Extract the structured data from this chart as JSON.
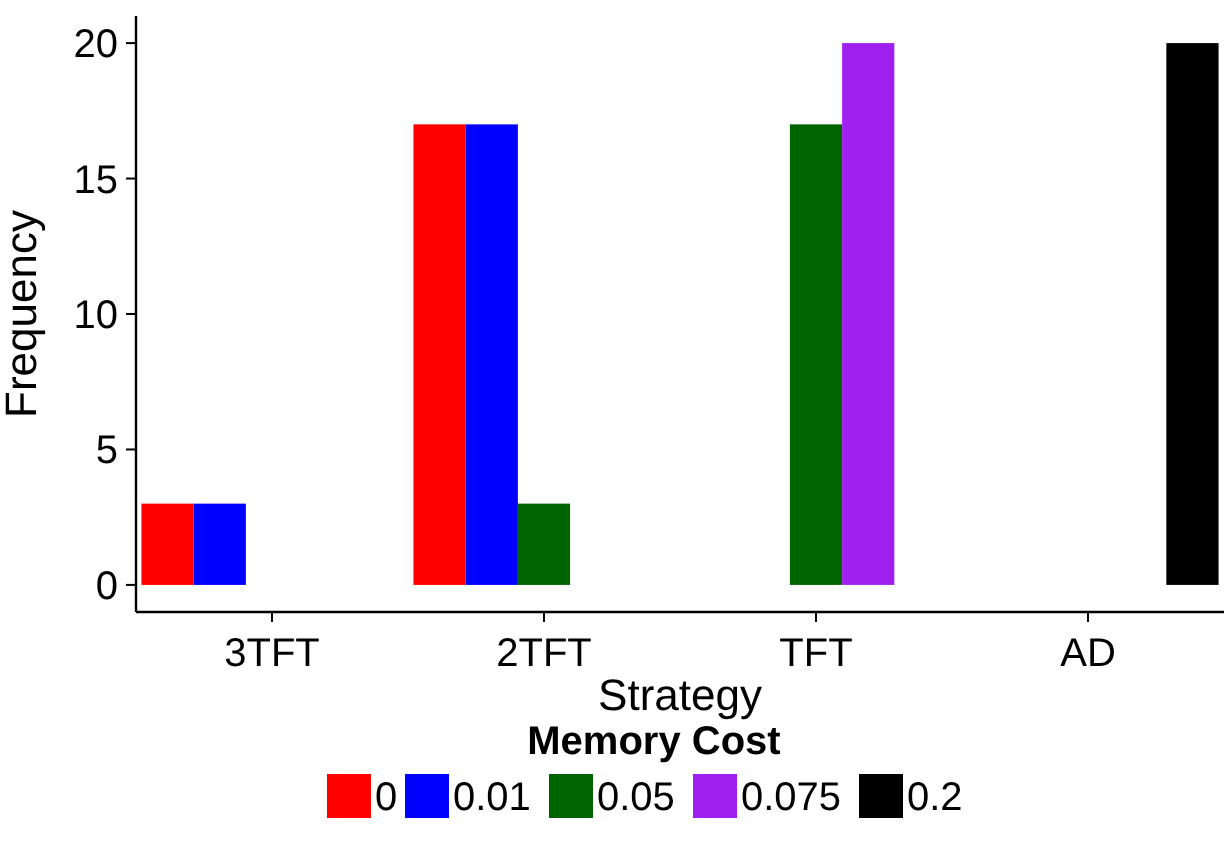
{
  "chart_data": {
    "type": "bar",
    "xlabel": "Strategy",
    "ylabel": "Frequency",
    "legend_title": "Memory Cost",
    "categories": [
      "3TFT",
      "2TFT",
      "TFT",
      "AD"
    ],
    "series": [
      {
        "name": "0",
        "color": "#ff0000",
        "values": [
          3,
          17,
          null,
          null
        ]
      },
      {
        "name": "0.01",
        "color": "#0000ff",
        "values": [
          3,
          17,
          null,
          null
        ]
      },
      {
        "name": "0.05",
        "color": "#006400",
        "values": [
          null,
          3,
          17,
          null
        ]
      },
      {
        "name": "0.075",
        "color": "#a020f0",
        "values": [
          null,
          null,
          20,
          null
        ]
      },
      {
        "name": "0.2",
        "color": "#000000",
        "values": [
          null,
          null,
          null,
          20
        ]
      }
    ],
    "ylim": [
      -1,
      21
    ],
    "yticks": [
      0,
      5,
      10,
      15,
      20
    ],
    "grid": false,
    "legend": "bottom"
  }
}
